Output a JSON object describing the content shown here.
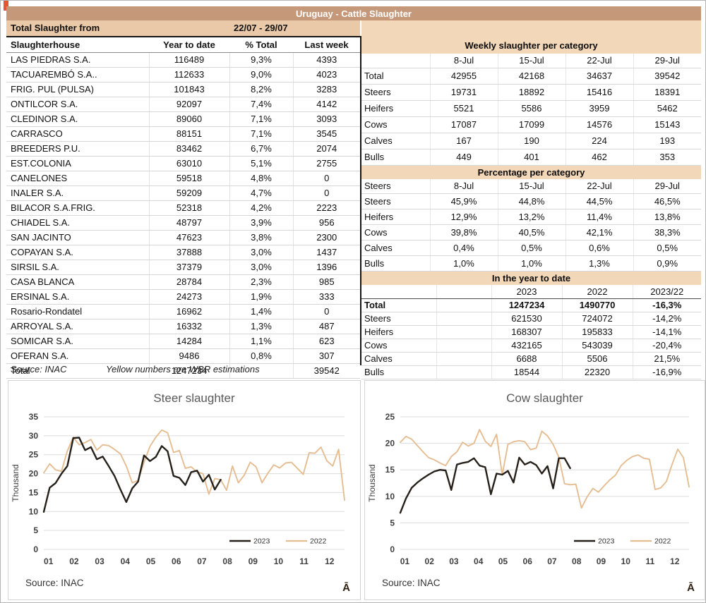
{
  "page": {
    "title": "Uruguay - Cattle Slaughter",
    "period_label": "Total Slaughter from",
    "period_value": "22/07 - 29/07",
    "source": "Source: INAC",
    "estimation_note": "Yellow numbers are WBR estimations"
  },
  "slaughterhouse_table": {
    "headers": [
      "Slaughterhouse",
      "Year to date",
      "% Total",
      "Last week"
    ],
    "rows": [
      {
        "name": "LAS PIEDRAS S.A.",
        "ytd": "116489",
        "pct": "9,3%",
        "last": "4393"
      },
      {
        "name": "TACUAREMBÓ S.A..",
        "ytd": "112633",
        "pct": "9,0%",
        "last": "4023"
      },
      {
        "name": "FRIG. PUL (PULSA)",
        "ytd": "101843",
        "pct": "8,2%",
        "last": "3283"
      },
      {
        "name": "ONTILCOR S.A.",
        "ytd": "92097",
        "pct": "7,4%",
        "last": "4142"
      },
      {
        "name": "CLEDINOR S.A.",
        "ytd": "89060",
        "pct": "7,1%",
        "last": "3093"
      },
      {
        "name": "CARRASCO",
        "ytd": "88151",
        "pct": "7,1%",
        "last": "3545"
      },
      {
        "name": "BREEDERS P.U.",
        "ytd": "83462",
        "pct": "6,7%",
        "last": "2074"
      },
      {
        "name": "EST.COLONIA",
        "ytd": "63010",
        "pct": "5,1%",
        "last": "2755"
      },
      {
        "name": "CANELONES",
        "ytd": "59518",
        "pct": "4,8%",
        "last": "0"
      },
      {
        "name": "INALER S.A.",
        "ytd": "59209",
        "pct": "4,7%",
        "last": "0"
      },
      {
        "name": "BILACOR S.A.FRIG.",
        "ytd": "52318",
        "pct": "4,2%",
        "last": "2223"
      },
      {
        "name": "CHIADEL S.A.",
        "ytd": "48797",
        "pct": "3,9%",
        "last": "956"
      },
      {
        "name": "SAN JACINTO",
        "ytd": "47623",
        "pct": "3,8%",
        "last": "2300"
      },
      {
        "name": "COPAYAN S.A.",
        "ytd": "37888",
        "pct": "3,0%",
        "last": "1437"
      },
      {
        "name": "SIRSIL S.A.",
        "ytd": "37379",
        "pct": "3,0%",
        "last": "1396"
      },
      {
        "name": "CASA BLANCA",
        "ytd": "28784",
        "pct": "2,3%",
        "last": "985"
      },
      {
        "name": "ERSINAL S.A.",
        "ytd": "24273",
        "pct": "1,9%",
        "last": "333"
      },
      {
        "name": "Rosario-Rondatel",
        "ytd": "16962",
        "pct": "1,4%",
        "last": "0"
      },
      {
        "name": "ARROYAL S.A.",
        "ytd": "16332",
        "pct": "1,3%",
        "last": "487"
      },
      {
        "name": "SOMICAR S.A.",
        "ytd": "14284",
        "pct": "1,1%",
        "last": "623"
      },
      {
        "name": "OFERAN S.A.",
        "ytd": "9486",
        "pct": "0,8%",
        "last": "307"
      },
      {
        "name": "Total",
        "ytd": "1247234",
        "pct": "",
        "last": "39542"
      }
    ]
  },
  "weekly_table": {
    "title": "Weekly slaughter per category",
    "columns": [
      "8-Jul",
      "15-Jul",
      "22-Jul",
      "29-Jul"
    ],
    "rows": [
      {
        "label": "Total",
        "values": [
          "42955",
          "42168",
          "34637",
          "39542"
        ]
      },
      {
        "label": "Steers",
        "values": [
          "19731",
          "18892",
          "15416",
          "18391"
        ]
      },
      {
        "label": "Heifers",
        "values": [
          "5521",
          "5586",
          "3959",
          "5462"
        ]
      },
      {
        "label": "Cows",
        "values": [
          "17087",
          "17099",
          "14576",
          "15143"
        ]
      },
      {
        "label": "Calves",
        "values": [
          "167",
          "190",
          "224",
          "193"
        ]
      },
      {
        "label": "Bulls",
        "values": [
          "449",
          "401",
          "462",
          "353"
        ]
      }
    ]
  },
  "percentage_table": {
    "title": "Percentage per category",
    "corner": "Steers",
    "columns": [
      "8-Jul",
      "15-Jul",
      "22-Jul",
      "29-Jul"
    ],
    "rows": [
      {
        "label": "Steers",
        "values": [
          "45,9%",
          "44,8%",
          "44,5%",
          "46,5%"
        ]
      },
      {
        "label": "Heifers",
        "values": [
          "12,9%",
          "13,2%",
          "11,4%",
          "13,8%"
        ]
      },
      {
        "label": "Cows",
        "values": [
          "39,8%",
          "40,5%",
          "42,1%",
          "38,3%"
        ]
      },
      {
        "label": "Calves",
        "values": [
          "0,4%",
          "0,5%",
          "0,6%",
          "0,5%"
        ]
      },
      {
        "label": "Bulls",
        "values": [
          "1,0%",
          "1,0%",
          "1,3%",
          "0,9%"
        ]
      }
    ]
  },
  "ytd_table": {
    "title": "In the year to date",
    "columns": [
      "2023",
      "2022",
      "2023/22"
    ],
    "rows": [
      {
        "label": "Total",
        "values": [
          "1247234",
          "1490770",
          "-16,3%"
        ],
        "_class": "bold-row"
      },
      {
        "label": "Steers",
        "values": [
          "621530",
          "724072",
          "-14,2%"
        ]
      },
      {
        "label": "Heifers",
        "values": [
          "168307",
          "195833",
          "-14,1%"
        ]
      },
      {
        "label": "Cows",
        "values": [
          "432165",
          "543039",
          "-20,4%"
        ]
      },
      {
        "label": "Calves",
        "values": [
          "6688",
          "5506",
          "21,5%"
        ]
      },
      {
        "label": "Bulls",
        "values": [
          "18544",
          "22320",
          "-16,9%"
        ]
      }
    ]
  },
  "chart_data": [
    {
      "type": "line",
      "title": "Steer slaughter",
      "ylabel": "Thousand",
      "ylim": [
        0,
        35
      ],
      "yticks": [
        0,
        5,
        10,
        15,
        20,
        25,
        30,
        35
      ],
      "xtick_labels": [
        "01",
        "02",
        "03",
        "04",
        "05",
        "06",
        "07",
        "08",
        "09",
        "10",
        "11",
        "12"
      ],
      "weeks_per_year": 52,
      "grid": true,
      "legend_position": "bottom-right",
      "source": "Source: INAC",
      "watermark": "Ā",
      "series": [
        {
          "name": "2023",
          "color": "#26201b",
          "width": 2.4,
          "values": [
            9.9,
            16.3,
            17.5,
            20,
            22,
            29.4,
            29.5,
            26.2,
            27,
            23.8,
            24.5,
            22,
            19.4,
            15.8,
            12.5,
            16.1,
            17.9,
            24.8,
            23.3,
            24.4,
            27.3,
            25.9,
            19.4,
            18.9,
            17,
            20.4,
            20.8,
            17.9,
            19.7,
            15.8,
            18.4
          ]
        },
        {
          "name": "2022",
          "color": "#e5bd93",
          "width": 1.9,
          "values": [
            20.2,
            22.6,
            21,
            20.6,
            26,
            29.6,
            27.6,
            28.2,
            29,
            26.2,
            27.6,
            27.4,
            26.4,
            25.2,
            22,
            17.6,
            18.2,
            23,
            27.2,
            29.6,
            31.5,
            30.8,
            25.6,
            26.1,
            21.4,
            21.8,
            20.4,
            20,
            14.6,
            18.7,
            18.4,
            15.6,
            22,
            17.6,
            19.6,
            23,
            21.8,
            17.6,
            20.1,
            22.3,
            21.5,
            22.8,
            23,
            21.4,
            19.8,
            25.5,
            25.4,
            27,
            23.4,
            22,
            26.4,
            13
          ]
        }
      ]
    },
    {
      "type": "line",
      "title": "Cow slaughter",
      "ylabel": "Thousand",
      "ylim": [
        0,
        25
      ],
      "yticks": [
        0,
        5,
        10,
        15,
        20,
        25
      ],
      "xtick_labels": [
        "01",
        "02",
        "03",
        "04",
        "05",
        "06",
        "07",
        "08",
        "09",
        "10",
        "11",
        "12"
      ],
      "weeks_per_year": 52,
      "grid": true,
      "legend_position": "bottom-right",
      "source": "Source: INAC",
      "watermark": "Ā",
      "series": [
        {
          "name": "2023",
          "color": "#26201b",
          "width": 2.4,
          "values": [
            6.9,
            9.6,
            11.6,
            12.6,
            13.4,
            14.1,
            14.7,
            15,
            14.9,
            11.2,
            16,
            16.3,
            16.5,
            17.2,
            15.8,
            15.5,
            10.4,
            14.3,
            14.1,
            14.8,
            12.6,
            17.3,
            16,
            16.5,
            15.9,
            14.3,
            15.7,
            11.5,
            17.2,
            17.2,
            15.3
          ]
        },
        {
          "name": "2022",
          "color": "#e5bd93",
          "width": 1.9,
          "values": [
            20.2,
            21.3,
            20.8,
            19.6,
            18.4,
            17.3,
            16.9,
            16.3,
            15.8,
            17.5,
            18.4,
            20.2,
            19.5,
            20,
            22.6,
            20.4,
            19.4,
            21.7,
            14,
            19.8,
            20.3,
            20.5,
            20.3,
            18.8,
            19.1,
            22.3,
            21.4,
            19.8,
            17.4,
            12.4,
            12.2,
            12.3,
            7.8,
            9.9,
            11.5,
            10.8,
            12,
            13.1,
            14,
            15.8,
            16.8,
            17.5,
            17.8,
            17.2,
            17,
            11.3,
            11.6,
            12.8,
            16,
            18.9,
            17.3,
            11.8
          ]
        }
      ]
    }
  ]
}
